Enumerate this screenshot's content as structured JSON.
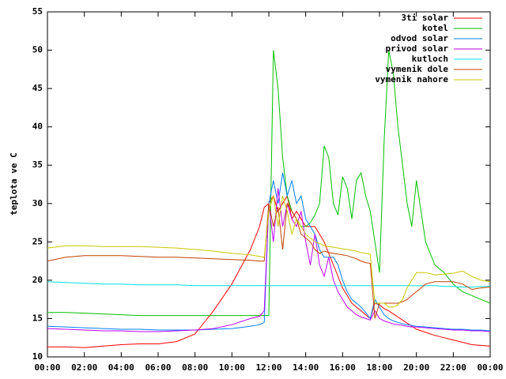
{
  "chart_data": {
    "type": "line",
    "y_label": "teplota ve C",
    "x": [
      0,
      1,
      2,
      3,
      4,
      5,
      6,
      7,
      8,
      9,
      10,
      11,
      11.5,
      11.75,
      12,
      12.25,
      12.5,
      12.75,
      13,
      13.25,
      13.5,
      13.75,
      14,
      14.25,
      14.5,
      14.75,
      15,
      15.25,
      15.5,
      15.75,
      16,
      16.25,
      16.5,
      16.75,
      17,
      17.25,
      17.5,
      17.75,
      18,
      18.25,
      18.5,
      18.75,
      19,
      19.25,
      19.5,
      19.75,
      20,
      20.5,
      21,
      21.5,
      22,
      22.5,
      23,
      23.5,
      24
    ],
    "xlim": [
      0,
      24
    ],
    "xticks": [
      {
        "value": 0,
        "label": "00:00"
      },
      {
        "value": 2,
        "label": "02:00"
      },
      {
        "value": 4,
        "label": "04:00"
      },
      {
        "value": 6,
        "label": "06:00"
      },
      {
        "value": 8,
        "label": "08:00"
      },
      {
        "value": 10,
        "label": "10:00"
      },
      {
        "value": 12,
        "label": "12:00"
      },
      {
        "value": 14,
        "label": "14:00"
      },
      {
        "value": 16,
        "label": "16:00"
      },
      {
        "value": 18,
        "label": "18:00"
      },
      {
        "value": 20,
        "label": "20:00"
      },
      {
        "value": 22,
        "label": "22:00"
      },
      {
        "value": 24,
        "label": "00:00"
      }
    ],
    "ylim": [
      10,
      55
    ],
    "yticks": [
      10,
      15,
      20,
      25,
      30,
      35,
      40,
      45,
      50,
      55
    ],
    "grid": false,
    "legend": "top-right",
    "series": [
      {
        "name": "3ti solar",
        "color": "#ff0000",
        "values": [
          11.3,
          11.3,
          11.2,
          11.4,
          11.6,
          11.7,
          11.7,
          12,
          13,
          16,
          19.5,
          24,
          27,
          29.5,
          30,
          31,
          29,
          30,
          31,
          28,
          29,
          28,
          27,
          27,
          27,
          26,
          25,
          23.5,
          22,
          20.5,
          19,
          18,
          17,
          16.5,
          16,
          15.5,
          15,
          17,
          16.8,
          16.3,
          16,
          15.6,
          15.2,
          14.8,
          14.4,
          14,
          13.6,
          13.2,
          12.8,
          12.5,
          12.2,
          11.9,
          11.6,
          11.5,
          11.4
        ]
      },
      {
        "name": "kotel",
        "color": "#00c000",
        "values": [
          15.8,
          15.8,
          15.7,
          15.6,
          15.5,
          15.4,
          15.4,
          15.4,
          15.4,
          15.4,
          15.4,
          15.4,
          15.4,
          15.4,
          15.4,
          50,
          45,
          36,
          31,
          29,
          28,
          27,
          27,
          27.5,
          28.5,
          30,
          37.5,
          36,
          30,
          28.5,
          33.5,
          32,
          28,
          33,
          34,
          31,
          29,
          25,
          21,
          38,
          50,
          47,
          40,
          35,
          30,
          27,
          33,
          25,
          22,
          21,
          19.5,
          18.5,
          18,
          17.5,
          17
        ]
      },
      {
        "name": "odvod solar",
        "color": "#0080ff",
        "values": [
          14,
          13.9,
          13.8,
          13.7,
          13.6,
          13.6,
          13.5,
          13.5,
          13.5,
          13.6,
          13.7,
          14,
          14.2,
          14.5,
          30,
          33,
          30,
          34,
          31,
          33,
          30,
          31,
          28,
          27,
          26,
          24,
          23,
          23,
          23,
          22,
          20,
          18.5,
          17.5,
          17,
          16.5,
          15.8,
          15,
          17.5,
          16.5,
          15.5,
          15,
          14.7,
          14.5,
          14.3,
          14.2,
          14.1,
          14,
          13.9,
          13.8,
          13.7,
          13.6,
          13.6,
          13.5,
          13.5,
          13.4
        ]
      },
      {
        "name": "privod solar",
        "color": "#c000ff",
        "values": [
          13.7,
          13.6,
          13.5,
          13.4,
          13.4,
          13.3,
          13.3,
          13.4,
          13.5,
          13.7,
          14.2,
          15,
          15.3,
          16,
          30,
          25,
          32,
          27,
          30,
          28,
          27,
          29,
          25,
          22,
          26,
          22,
          20.5,
          23,
          20,
          18.5,
          17.5,
          16.5,
          16,
          15.5,
          15.2,
          15,
          14.8,
          16,
          15,
          14.7,
          14.5,
          14.3,
          14.2,
          14.1,
          14,
          13.9,
          13.9,
          13.8,
          13.7,
          13.6,
          13.5,
          13.5,
          13.4,
          13.4,
          13.3
        ]
      },
      {
        "name": "kutloch",
        "color": "#00e0e0",
        "values": [
          19.8,
          19.7,
          19.6,
          19.5,
          19.5,
          19.4,
          19.4,
          19.4,
          19.3,
          19.3,
          19.3,
          19.3,
          19.3,
          19.3,
          19.3,
          19.3,
          19.3,
          19.3,
          19.3,
          19.3,
          19.3,
          19.3,
          19.3,
          19.3,
          19.3,
          19.3,
          19.3,
          19.3,
          19.3,
          19.3,
          19.3,
          19.3,
          19.3,
          19.3,
          19.3,
          19.3,
          19.3,
          19.3,
          19.3,
          19.3,
          19.3,
          19.3,
          19.3,
          19.3,
          19.3,
          19.3,
          19.3,
          19.3,
          19.3,
          19.2,
          19.2,
          19.1,
          19.1,
          19.2,
          19.2
        ]
      },
      {
        "name": "vymenik dole",
        "color": "#c04000",
        "values": [
          22.5,
          23,
          23.2,
          23.2,
          23.2,
          23.1,
          23,
          23,
          22.9,
          22.8,
          22.7,
          22.6,
          22.5,
          22.5,
          30,
          27,
          29.5,
          24,
          30,
          29,
          28,
          26,
          25.5,
          25,
          24,
          23.5,
          23.8,
          23.6,
          23.5,
          23.4,
          23.3,
          23.2,
          23,
          22.8,
          22.5,
          22.3,
          22.2,
          15,
          17,
          17,
          17,
          17,
          17,
          17.2,
          17.5,
          18,
          18.5,
          19.5,
          19.8,
          19.8,
          19.8,
          19.5,
          18.8,
          19,
          19.1
        ]
      },
      {
        "name": "vymenik nahore",
        "color": "#c8c800",
        "values": [
          24.2,
          24.5,
          24.5,
          24.4,
          24.4,
          24.4,
          24.3,
          24.2,
          24,
          23.8,
          23.5,
          23.3,
          23.1,
          23,
          29,
          31,
          27,
          31,
          29,
          26,
          28,
          27,
          26,
          25.5,
          25,
          24.8,
          24.5,
          24.4,
          24.3,
          24.2,
          24.1,
          24,
          23.9,
          23.8,
          23.6,
          23.5,
          23.4,
          17,
          17,
          17,
          16.5,
          16.5,
          16.8,
          17.5,
          19,
          20,
          21,
          21,
          20.7,
          20.8,
          20.9,
          21.2,
          20.5,
          20,
          19.8
        ]
      }
    ]
  }
}
